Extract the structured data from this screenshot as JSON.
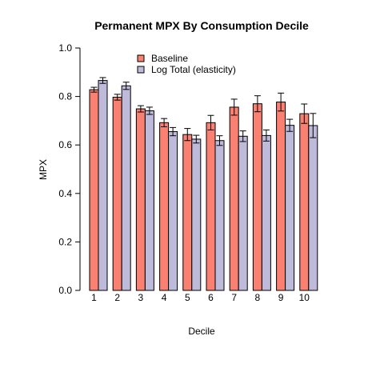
{
  "chart_data": {
    "type": "bar",
    "title": "Permanent MPX By Consumption Decile",
    "xlabel": "Decile",
    "ylabel": "MPX",
    "ylim": [
      0,
      1.0
    ],
    "yticks": [
      "0.0",
      "0.2",
      "0.4",
      "0.6",
      "0.8",
      "1.0"
    ],
    "categories": [
      "1",
      "2",
      "3",
      "4",
      "5",
      "6",
      "7",
      "8",
      "9",
      "10"
    ],
    "series": [
      {
        "name": "Baseline",
        "color": "#fa8072",
        "values": [
          0.828,
          0.797,
          0.749,
          0.692,
          0.643,
          0.692,
          0.756,
          0.77,
          0.777,
          0.729
        ],
        "errors": [
          0.01,
          0.012,
          0.013,
          0.017,
          0.025,
          0.03,
          0.033,
          0.033,
          0.037,
          0.04
        ]
      },
      {
        "name": "Log Total (elasticity)",
        "color": "#bebada",
        "values": [
          0.866,
          0.844,
          0.741,
          0.655,
          0.624,
          0.618,
          0.636,
          0.639,
          0.681,
          0.68
        ],
        "errors": [
          0.012,
          0.015,
          0.015,
          0.017,
          0.016,
          0.02,
          0.022,
          0.023,
          0.025,
          0.05
        ]
      }
    ],
    "legend": {
      "position": "top-left"
    },
    "grid": false
  }
}
